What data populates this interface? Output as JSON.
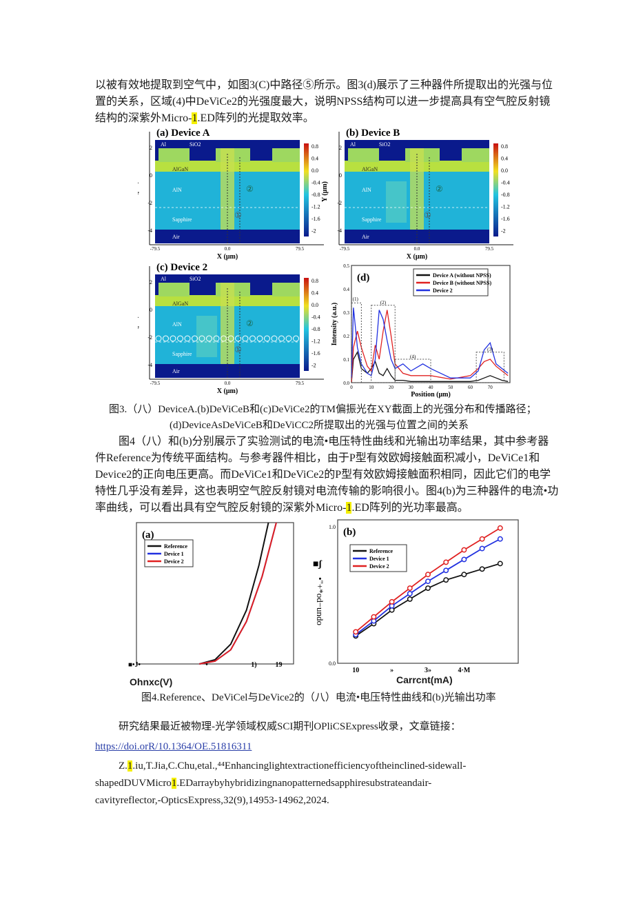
{
  "intro": {
    "line1": "以被有效地提取到空气中，如图3(C)中路径⑤所示。图3(d)展示了三种器件所提取出的光强与位",
    "line2": "置的关系，区域(4)中DeViCe2的光强度最大，说明NPSS结构可以进一步提高具有空气腔反射镜",
    "line3_pre": "结构的深紫外Micro-",
    "line3_hl": "1",
    "line3_post": ".ED阵列的光提取效率。"
  },
  "figure3": {
    "panels": [
      {
        "title": "(a) Device A",
        "variant": "A"
      },
      {
        "title": "(b) Device B",
        "variant": "B"
      },
      {
        "title": "(c) Device 2",
        "variant": "2"
      }
    ],
    "layers": [
      "Al",
      "SiO2",
      "AlGaN",
      "AlN",
      "Sapphire",
      "Air"
    ],
    "paths": [
      "①",
      "②"
    ],
    "y_ticks": [
      "2",
      "0",
      "-2",
      "-4"
    ],
    "x_ticks": [
      "-79.5",
      "0.0",
      "79.5"
    ],
    "colorbar_ticks": [
      "0.8",
      "0.4",
      "0.0",
      "-0.4",
      "-0.8",
      "-1.2",
      "-1.6",
      "-2"
    ],
    "ylabel": "Y (μm)",
    "xlabel": "X (μm)",
    "colors": {
      "low": "#0a1a8c",
      "mid": "#22c4e0",
      "high": "#f0e020",
      "max": "#c81010"
    },
    "caption_line1": "图3.（八）DeviceA.(b)DeViCeB和(c)DeViCe2的TM偏振光在XY截面上的光强分布和传播路径；",
    "caption_line2": "(d)DeviceAsDeViCeB和DeViCC2所提取出的光强与位置之间的关系"
  },
  "chart_data": [
    {
      "type": "line",
      "panel_label": "(d)",
      "xlabel": "Position (μm)",
      "ylabel": "Intensity (a.u.)",
      "xlim": [
        0,
        80
      ],
      "ylim": [
        0,
        0.5
      ],
      "x_ticks": [
        "0",
        "10",
        "20",
        "30",
        "40",
        "50",
        "60",
        "70"
      ],
      "y_ticks": [
        "0.0",
        "0.1",
        "0.2",
        "0.3",
        "0.4",
        "0.5"
      ],
      "regions": [
        "(1)",
        "(2)",
        "(3)",
        "(4)"
      ],
      "legend": "top-right",
      "x": [
        0,
        1,
        3,
        5,
        8,
        10,
        12,
        14,
        16,
        18,
        20,
        22,
        26,
        30,
        36,
        40,
        50,
        60,
        64,
        67,
        70,
        73,
        76,
        79
      ],
      "series": [
        {
          "name": "Device A (without NPSS)",
          "color": "#111111",
          "values": [
            0,
            0.1,
            0.13,
            0.06,
            0.04,
            0.06,
            0.09,
            0.04,
            0.03,
            0.06,
            0.03,
            0.01,
            0.01,
            0.005,
            0.005,
            0.005,
            0.005,
            0.005,
            0.01,
            0.02,
            0.03,
            0.02,
            0.01,
            0.005
          ]
        },
        {
          "name": "Device B (without NPSS)",
          "color": "#e02020",
          "values": [
            0,
            0.15,
            0.22,
            0.15,
            0.07,
            0.05,
            0.16,
            0.1,
            0.22,
            0.31,
            0.2,
            0.08,
            0.04,
            0.03,
            0.03,
            0.03,
            0.015,
            0.03,
            0.06,
            0.09,
            0.1,
            0.07,
            0.05,
            0.03
          ]
        },
        {
          "name": "Device 2",
          "color": "#2030e0",
          "values": [
            0.02,
            0.32,
            0.15,
            0.08,
            0.04,
            0.03,
            0.1,
            0.31,
            0.27,
            0.18,
            0.1,
            0.06,
            0.08,
            0.05,
            0.08,
            0.06,
            0.02,
            0.02,
            0.05,
            0.14,
            0.17,
            0.08,
            0.06,
            0.04
          ]
        }
      ]
    },
    {
      "type": "line",
      "panel_label": "(a)",
      "xlabel": "Ohnxc(V)",
      "x_ticks": [
        "■•J•",
        "•",
        "1)",
        "19"
      ],
      "legend": "top-left",
      "series": [
        {
          "name": "Reference",
          "color": "#111111",
          "x": [
            4.0,
            5.0,
            6.0,
            7.0,
            7.8,
            8.4
          ],
          "values": [
            0,
            3,
            14,
            38,
            70,
            100
          ]
        },
        {
          "name": "Device 1",
          "color": "#2030e0",
          "x": [
            4.0,
            5.0,
            6.0,
            7.0,
            8.0,
            8.9
          ],
          "values": [
            0,
            2,
            10,
            30,
            62,
            100
          ]
        },
        {
          "name": "Device 2",
          "color": "#e02020",
          "x": [
            4.0,
            5.0,
            6.0,
            7.0,
            8.0,
            8.9
          ],
          "values": [
            0,
            2,
            10,
            30,
            62,
            100
          ]
        }
      ],
      "xlim": [
        0,
        10
      ],
      "ylim": [
        0,
        100
      ]
    },
    {
      "type": "line",
      "panel_label": "(b)",
      "xlabel": "Carrcnt(mA)",
      "ylabel": "•\"+*od−undo",
      "ylabel_mark": "■ʃ",
      "x_ticks": [
        "10",
        "»",
        "3»",
        "4·M"
      ],
      "y_ticks": [
        "0.0",
        "1.0"
      ],
      "xlim": [
        5,
        55
      ],
      "ylim": [
        0,
        1.05
      ],
      "legend": "top-left",
      "x": [
        10,
        15,
        20,
        25,
        30,
        35,
        40,
        45,
        50
      ],
      "series": [
        {
          "name": "Reference",
          "color": "#111111",
          "values": [
            0.2,
            0.29,
            0.39,
            0.47,
            0.55,
            0.61,
            0.65,
            0.69,
            0.73
          ]
        },
        {
          "name": "Device 1",
          "color": "#2030e0",
          "values": [
            0.21,
            0.31,
            0.42,
            0.51,
            0.6,
            0.68,
            0.76,
            0.84,
            0.91
          ]
        },
        {
          "name": "Device 2",
          "color": "#e02020",
          "values": [
            0.23,
            0.34,
            0.45,
            0.55,
            0.65,
            0.74,
            0.83,
            0.91,
            0.99
          ]
        }
      ]
    }
  ],
  "para2": {
    "line1": "图4（八）和(b)分别展示了实验测试的电流•电压特性曲线和光输出功率结果，其中参考器",
    "line2": "件Reference为传统平面结构。与参考器件相比，由于P型有效欧姆接触面积减小，DeViCe1和",
    "line3": "Device2的正向电压更高。而DeViCe1和DeViCe2的P型有效欧姆接触面积相同，因此它们的电学",
    "line4": "特性几乎没有差异，这也表明空气腔反射镜对电流传输的影响很小。图4(b)为三种器件的电流•功",
    "line5_pre": "率曲线，可以看出具有空气腔反射镜的深紫外Micro-",
    "line5_hl": "1",
    "line5_post": ".ED阵列的光功率最高。"
  },
  "figure4": {
    "caption": "图4.Reference、DeViCel与DeVice2的（八）电流•电压特性曲线和(b)光输出功率"
  },
  "closing": {
    "line1": "研究结果最近被物理-光学领域权威SCI期刊OPliCSExpress收录，文章链接：",
    "link": "https://doi.orR/10.1364/OE.51816311",
    "ref1_pre": "Z.",
    "ref1_hl": "1",
    "ref1_post": ".iu,T.Jia,C.Chu,etal.,⁴⁴Enhancinglightextractionefficiencyoftheinclined-sidewall-",
    "ref2_pre": "shapedDUVMicro",
    "ref2_hl": "1",
    "ref2_post": ".EDarraybyhybridizingnanopatternedsapphiresubstrateandair-",
    "ref3": "cavityreflector,-OpticsExpress,32(9),14953-14962,2024."
  }
}
